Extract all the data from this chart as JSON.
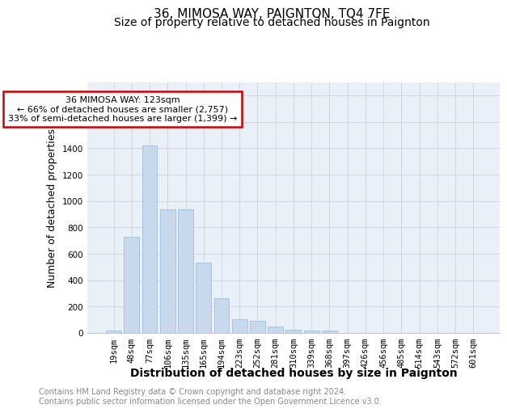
{
  "title": "36, MIMOSA WAY, PAIGNTON, TQ4 7FE",
  "subtitle": "Size of property relative to detached houses in Paignton",
  "xlabel": "Distribution of detached houses by size in Paignton",
  "ylabel": "Number of detached properties",
  "categories": [
    "19sqm",
    "48sqm",
    "77sqm",
    "106sqm",
    "135sqm",
    "165sqm",
    "194sqm",
    "223sqm",
    "252sqm",
    "281sqm",
    "310sqm",
    "339sqm",
    "368sqm",
    "397sqm",
    "426sqm",
    "456sqm",
    "485sqm",
    "514sqm",
    "543sqm",
    "572sqm",
    "601sqm"
  ],
  "values": [
    20,
    730,
    1420,
    940,
    935,
    530,
    265,
    105,
    90,
    50,
    25,
    15,
    15,
    2,
    2,
    2,
    2,
    2,
    2,
    2,
    2
  ],
  "bar_color": "#c8d9ee",
  "bar_edge_color": "#7aafd4",
  "ylim": [
    0,
    1900
  ],
  "yticks": [
    0,
    200,
    400,
    600,
    800,
    1000,
    1200,
    1400,
    1600,
    1800
  ],
  "annotation_text": "36 MIMOSA WAY: 123sqm\n← 66% of detached houses are smaller (2,757)\n33% of semi-detached houses are larger (1,399) →",
  "annotation_box_color": "#ffffff",
  "annotation_box_edgecolor": "#cc0000",
  "footnote": "Contains HM Land Registry data © Crown copyright and database right 2024.\nContains public sector information licensed under the Open Government Licence v3.0.",
  "grid_color": "#c8d4e2",
  "background_color": "#eaf0f8",
  "title_fontsize": 11,
  "subtitle_fontsize": 10,
  "axis_label_fontsize": 9,
  "tick_fontsize": 7.5,
  "footnote_fontsize": 7
}
